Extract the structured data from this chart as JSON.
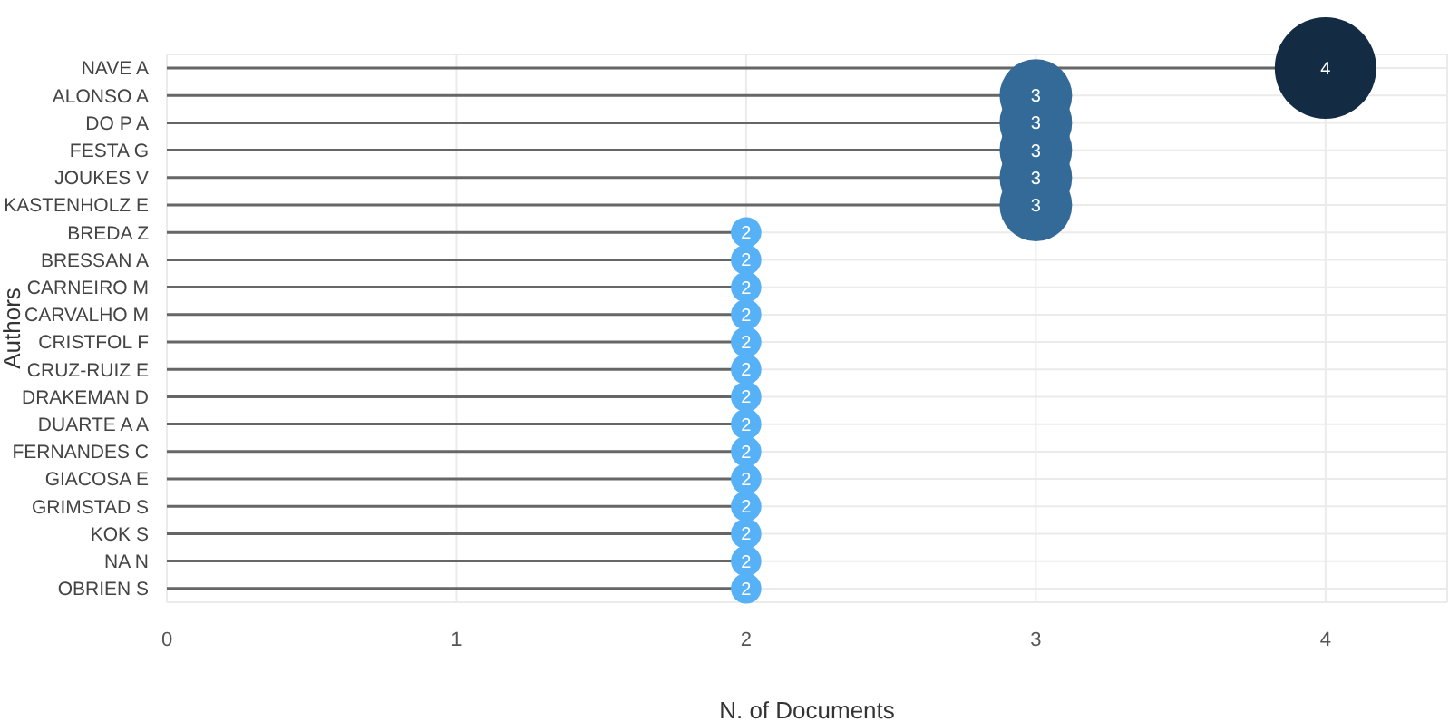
{
  "chart_data": {
    "type": "lollipop",
    "orientation": "horizontal",
    "xlabel": "N. of Documents",
    "ylabel": "Authors",
    "categories": [
      "NAVE A",
      "ALONSO A",
      "DO P A",
      "FESTA G",
      "JOUKES V",
      "KASTENHOLZ E",
      "BREDA Z",
      "BRESSAN A",
      "CARNEIRO M",
      "CARVALHO M",
      "CRISTFOL F",
      "CRUZ-RUIZ E",
      "DRAKEMAN D",
      "DUARTE A A",
      "FERNANDES C",
      "GIACOSA E",
      "GRIMSTAD S",
      "KOK S",
      "NA N",
      "OBRIEN S"
    ],
    "values": [
      4,
      3,
      3,
      3,
      3,
      3,
      2,
      2,
      2,
      2,
      2,
      2,
      2,
      2,
      2,
      2,
      2,
      2,
      2,
      2
    ],
    "sizes": [
      1,
      0.51,
      0.51,
      0.51,
      0.51,
      0.51,
      0.09,
      0.09,
      0.09,
      0.09,
      0.09,
      0.09,
      0.09,
      0.09,
      0.09,
      0.09,
      0.09,
      0.09,
      0.09,
      0.09
    ],
    "colors": [
      "#132b43",
      "#336a98",
      "#336a98",
      "#336a98",
      "#336a98",
      "#336a98",
      "#56b1f7",
      "#56b1f7",
      "#56b1f7",
      "#56b1f7",
      "#56b1f7",
      "#56b1f7",
      "#56b1f7",
      "#56b1f7",
      "#56b1f7",
      "#56b1f7",
      "#56b1f7",
      "#56b1f7",
      "#56b1f7",
      "#56b1f7"
    ],
    "xlim": [
      0,
      4.42
    ],
    "xticks": [
      0,
      1,
      2,
      3,
      4
    ],
    "grid": true,
    "data_labels": true,
    "legend": false
  }
}
